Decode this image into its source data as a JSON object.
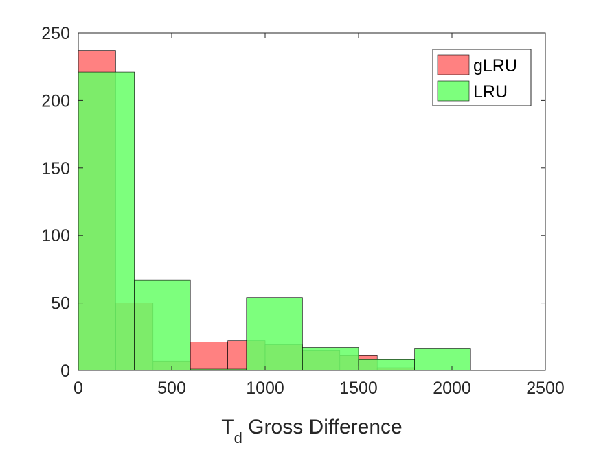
{
  "chart_data": {
    "type": "bar",
    "subtype": "overlaid-histogram",
    "xlabel_main": "T",
    "xlabel_sub": "d",
    "xlabel_rest": " Gross Difference",
    "ylabel": "",
    "xlim": [
      0,
      2500
    ],
    "ylim": [
      0,
      250
    ],
    "x_ticks": [
      0,
      500,
      1000,
      1500,
      2000,
      2500
    ],
    "y_ticks": [
      0,
      50,
      100,
      150,
      200,
      250
    ],
    "x_tick_labels": [
      "0",
      "500",
      "1000",
      "1500",
      "2000",
      "2500"
    ],
    "y_tick_labels": [
      "0",
      "50",
      "100",
      "150",
      "200",
      "250"
    ],
    "grid": false,
    "legend_position": "top-right",
    "series": [
      {
        "name": "gLRU",
        "color": "#ff6b6b",
        "bins": [
          {
            "x0": 0,
            "x1": 200,
            "count": 237
          },
          {
            "x0": 200,
            "x1": 400,
            "count": 50
          },
          {
            "x0": 400,
            "x1": 600,
            "count": 7
          },
          {
            "x0": 600,
            "x1": 800,
            "count": 21
          },
          {
            "x0": 800,
            "x1": 1000,
            "count": 22
          },
          {
            "x0": 1000,
            "x1": 1200,
            "count": 19
          },
          {
            "x0": 1200,
            "x1": 1400,
            "count": 15
          },
          {
            "x0": 1400,
            "x1": 1600,
            "count": 11
          },
          {
            "x0": 1600,
            "x1": 1800,
            "count": 2
          }
        ]
      },
      {
        "name": "LRU",
        "color": "#66ff66",
        "bins": [
          {
            "x0": 0,
            "x1": 300,
            "count": 221
          },
          {
            "x0": 300,
            "x1": 600,
            "count": 67
          },
          {
            "x0": 600,
            "x1": 900,
            "count": 1
          },
          {
            "x0": 900,
            "x1": 1200,
            "count": 54
          },
          {
            "x0": 1200,
            "x1": 1500,
            "count": 17
          },
          {
            "x0": 1500,
            "x1": 1800,
            "count": 8
          },
          {
            "x0": 1800,
            "x1": 2100,
            "count": 16
          }
        ]
      }
    ]
  }
}
